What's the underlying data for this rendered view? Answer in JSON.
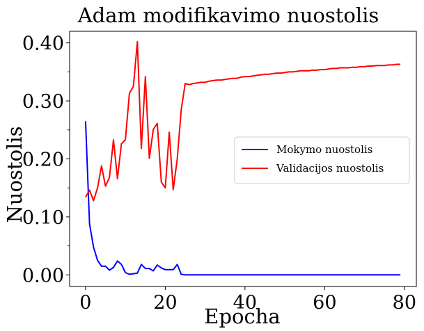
{
  "chart_data": {
    "type": "line",
    "title": "Adam modifikavimo nuostolis",
    "xlabel": "Epocha",
    "ylabel": "Nuostolis",
    "xlim": [
      -4,
      83
    ],
    "ylim": [
      -0.02,
      0.42
    ],
    "xticks": [
      0,
      20,
      40,
      60,
      80
    ],
    "xtick_labels": [
      "0",
      "20",
      "40",
      "60",
      "80"
    ],
    "yticks": [
      0.0,
      0.1,
      0.2,
      0.3,
      0.4
    ],
    "ytick_labels": [
      "0.00",
      "0.10",
      "0.20",
      "0.30",
      "0.40"
    ],
    "grid": false,
    "legend_position": "center-right",
    "series": [
      {
        "name": "Mokymo nuostolis",
        "color": "#0000ff",
        "x": [
          0,
          1,
          2,
          3,
          4,
          5,
          6,
          7,
          8,
          9,
          10,
          11,
          12,
          13,
          14,
          15,
          16,
          17,
          18,
          19,
          20,
          21,
          22,
          23,
          24,
          25,
          26,
          27,
          28,
          29,
          30,
          31,
          32,
          33,
          34,
          35,
          36,
          37,
          38,
          39,
          40,
          41,
          42,
          43,
          44,
          45,
          46,
          47,
          48,
          49,
          50,
          51,
          52,
          53,
          54,
          55,
          56,
          57,
          58,
          59,
          60,
          61,
          62,
          63,
          64,
          65,
          66,
          67,
          68,
          69,
          70,
          71,
          72,
          73,
          74,
          75,
          76,
          77,
          78,
          79
        ],
        "y": [
          0.265,
          0.088,
          0.048,
          0.025,
          0.015,
          0.015,
          0.008,
          0.013,
          0.024,
          0.018,
          0.004,
          0.001,
          0.002,
          0.003,
          0.018,
          0.011,
          0.011,
          0.007,
          0.017,
          0.012,
          0.009,
          0.009,
          0.009,
          0.018,
          0.001,
          0.0,
          0.0,
          0.0,
          0.0,
          0.0,
          0.0,
          0.0,
          0.0,
          0.0,
          0.0,
          0.0,
          0.0,
          0.0,
          0.0,
          0.0,
          0.0,
          0.0,
          0.0,
          0.0,
          0.0,
          0.0,
          0.0,
          0.0,
          0.0,
          0.0,
          0.0,
          0.0,
          0.0,
          0.0,
          0.0,
          0.0,
          0.0,
          0.0,
          0.0,
          0.0,
          0.0,
          0.0,
          0.0,
          0.0,
          0.0,
          0.0,
          0.0,
          0.0,
          0.0,
          0.0,
          0.0,
          0.0,
          0.0,
          0.0,
          0.0,
          0.0,
          0.0,
          0.0,
          0.0,
          0.0
        ]
      },
      {
        "name": "Validacijos nuostolis",
        "color": "#ff0000",
        "x": [
          0,
          1,
          2,
          3,
          4,
          5,
          6,
          7,
          8,
          9,
          10,
          11,
          12,
          13,
          14,
          15,
          16,
          17,
          18,
          19,
          20,
          21,
          22,
          23,
          24,
          25,
          26,
          27,
          28,
          29,
          30,
          31,
          32,
          33,
          34,
          35,
          36,
          37,
          38,
          39,
          40,
          41,
          42,
          43,
          44,
          45,
          46,
          47,
          48,
          49,
          50,
          51,
          52,
          53,
          54,
          55,
          56,
          57,
          58,
          59,
          60,
          61,
          62,
          63,
          64,
          65,
          66,
          67,
          68,
          69,
          70,
          71,
          72,
          73,
          74,
          75,
          76,
          77,
          78,
          79
        ],
        "y": [
          0.134,
          0.146,
          0.128,
          0.15,
          0.188,
          0.153,
          0.168,
          0.233,
          0.166,
          0.226,
          0.233,
          0.313,
          0.325,
          0.402,
          0.218,
          0.342,
          0.201,
          0.251,
          0.261,
          0.16,
          0.15,
          0.246,
          0.147,
          0.2,
          0.285,
          0.33,
          0.328,
          0.33,
          0.331,
          0.332,
          0.332,
          0.334,
          0.335,
          0.336,
          0.336,
          0.337,
          0.338,
          0.339,
          0.339,
          0.341,
          0.342,
          0.342,
          0.343,
          0.344,
          0.345,
          0.346,
          0.346,
          0.347,
          0.348,
          0.348,
          0.349,
          0.35,
          0.35,
          0.351,
          0.352,
          0.352,
          0.352,
          0.353,
          0.353,
          0.354,
          0.354,
          0.355,
          0.356,
          0.356,
          0.357,
          0.357,
          0.357,
          0.358,
          0.358,
          0.359,
          0.359,
          0.36,
          0.36,
          0.361,
          0.361,
          0.361,
          0.362,
          0.362,
          0.363,
          0.363
        ]
      }
    ]
  }
}
